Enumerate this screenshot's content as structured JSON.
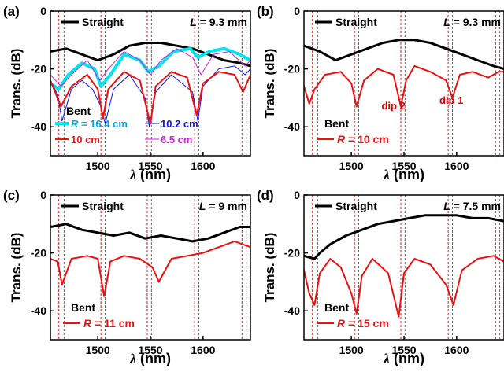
{
  "figure": {
    "description_panels": 4
  },
  "chart_data": [
    {
      "panel_label": "(a)",
      "type": "line",
      "xlabel_symbol": "λ",
      "xlabel_unit": "(nm)",
      "ylabel": "Trans. (dB)",
      "xlim": [
        1455,
        1645
      ],
      "ylim": [
        -50,
        0
      ],
      "xticks": [
        1500,
        1550,
        1600
      ],
      "yticks": [
        -40,
        -20,
        0
      ],
      "length_label": "L = 9.3 mm",
      "length_prefix": "L",
      "length_value": "= 9.3 mm",
      "bent_label": "Bent",
      "dashed_reference_lines": [
        1463,
        1468,
        1503,
        1507,
        1547,
        1551,
        1592,
        1596,
        1637,
        1641
      ],
      "series": [
        {
          "name": "Straight",
          "color": "#000000",
          "width": 3,
          "x": [
            1455,
            1470,
            1485,
            1500,
            1515,
            1530,
            1545,
            1560,
            1575,
            1590,
            1605,
            1620,
            1635,
            1645
          ],
          "y": [
            -14,
            -13,
            -15,
            -17,
            -15,
            -12,
            -11,
            -11,
            -12,
            -13,
            -15,
            -17,
            -18,
            -19
          ]
        },
        {
          "name": "R = 16.4 cm",
          "color": "#00e5ee",
          "width": 4,
          "x": [
            1455,
            1463,
            1472,
            1485,
            1497,
            1503,
            1512,
            1525,
            1540,
            1548,
            1558,
            1572,
            1588,
            1595,
            1606,
            1620,
            1635,
            1645
          ],
          "y": [
            -25,
            -27,
            -22,
            -18,
            -20,
            -26,
            -22,
            -15,
            -17,
            -21,
            -19,
            -14,
            -13,
            -16,
            -14,
            -13,
            -15,
            -17
          ]
        },
        {
          "name": "10.2 cm",
          "color": "#1010ee",
          "width": 1,
          "x": [
            1455,
            1462,
            1466,
            1475,
            1485,
            1495,
            1503,
            1507,
            1515,
            1530,
            1545,
            1549,
            1555,
            1570,
            1590,
            1595,
            1600,
            1615,
            1630,
            1640,
            1645
          ],
          "y": [
            -24,
            -29,
            -38,
            -27,
            -24,
            -27,
            -33,
            -39,
            -27,
            -22,
            -30,
            -40,
            -28,
            -22,
            -28,
            -38,
            -26,
            -20,
            -19,
            -22,
            -20
          ]
        },
        {
          "name": "10 cm",
          "color": "#ee1010",
          "width": 2,
          "x": [
            1455,
            1465,
            1475,
            1490,
            1500,
            1505,
            1510,
            1525,
            1540,
            1550,
            1555,
            1570,
            1585,
            1594,
            1600,
            1615,
            1630,
            1638,
            1645
          ],
          "y": [
            -24,
            -33,
            -26,
            -22,
            -27,
            -37,
            -27,
            -21,
            -24,
            -39,
            -26,
            -21,
            -23,
            -36,
            -25,
            -21,
            -22,
            -28,
            -22
          ]
        },
        {
          "name": "6.5 cm",
          "color": "#cc22dd",
          "width": 1,
          "x": [
            1455,
            1465,
            1475,
            1490,
            1502,
            1510,
            1525,
            1540,
            1550,
            1560,
            1575,
            1590,
            1598,
            1610,
            1625,
            1640,
            1645
          ],
          "y": [
            -22,
            -26,
            -22,
            -17,
            -24,
            -20,
            -14,
            -17,
            -22,
            -17,
            -13,
            -16,
            -22,
            -15,
            -14,
            -19,
            -17
          ]
        }
      ],
      "legend_rows": [
        {
          "label": "R = 16.4 cm",
          "prefix": "R",
          "value": " = 16.4 cm",
          "color": "#00e5ee",
          "width": 4,
          "label_color": "#00aadd"
        },
        {
          "label": "10.2 cm",
          "prefix": "",
          "value": "10.2 cm",
          "color": "#1010ee",
          "width": 1,
          "label_color": "#1010ee"
        },
        {
          "label": "10 cm",
          "prefix": "",
          "value": "10 cm",
          "color": "#ee1010",
          "width": 2,
          "label_color": "#ee1010"
        },
        {
          "label": "6.5 cm",
          "prefix": "",
          "value": "6.5 cm",
          "color": "#cc22dd",
          "width": 1,
          "label_color": "#cc22dd"
        }
      ],
      "annotations": []
    },
    {
      "panel_label": "(b)",
      "type": "line",
      "xlabel_symbol": "λ",
      "xlabel_unit": "(nm)",
      "ylabel": "Trans. (dB)",
      "xlim": [
        1455,
        1645
      ],
      "ylim": [
        -50,
        0
      ],
      "xticks": [
        1500,
        1550,
        1600
      ],
      "yticks": [
        -40,
        -20,
        0
      ],
      "length_label": "L = 9.3 mm",
      "length_prefix": "L",
      "length_value": "= 9.3 mm",
      "bent_label": "Bent",
      "dashed_reference_lines": [
        1463,
        1468,
        1503,
        1507,
        1547,
        1551,
        1592,
        1596,
        1637,
        1641
      ],
      "series": [
        {
          "name": "Straight",
          "color": "#000000",
          "width": 3,
          "x": [
            1455,
            1470,
            1485,
            1500,
            1515,
            1530,
            1545,
            1560,
            1575,
            1590,
            1605,
            1620,
            1635,
            1645
          ],
          "y": [
            -12,
            -14,
            -17,
            -15,
            -13,
            -11,
            -10,
            -10,
            -11,
            -13,
            -15,
            -17,
            -19,
            -20
          ]
        },
        {
          "name": "R = 10 cm",
          "color": "#ee1010",
          "width": 2,
          "x": [
            1455,
            1460,
            1465,
            1475,
            1490,
            1500,
            1505,
            1512,
            1525,
            1540,
            1547,
            1552,
            1560,
            1575,
            1590,
            1596,
            1603,
            1615,
            1630,
            1640,
            1645
          ],
          "y": [
            -26,
            -32,
            -27,
            -22,
            -21,
            -25,
            -33,
            -24,
            -20,
            -22,
            -33,
            -24,
            -19,
            -21,
            -24,
            -30,
            -22,
            -21,
            -23,
            -21,
            -21
          ]
        }
      ],
      "legend_rows": [
        {
          "label": "R = 10 cm",
          "prefix": "R",
          "value": " = 10 cm",
          "color": "#ee1010",
          "width": 2,
          "label_color": "#ee1010"
        }
      ],
      "annotations": [
        {
          "text": "dip 2",
          "x": 1540,
          "y": -34,
          "color": "#dd0000"
        },
        {
          "text": "dip 1",
          "x": 1595,
          "y": -32,
          "color": "#dd0000"
        }
      ]
    },
    {
      "panel_label": "(c)",
      "type": "line",
      "xlabel_symbol": "λ",
      "xlabel_unit": "(nm)",
      "ylabel": "Trans. (dB)",
      "xlim": [
        1455,
        1645
      ],
      "ylim": [
        -50,
        0
      ],
      "xticks": [
        1500,
        1550,
        1600
      ],
      "yticks": [
        -40,
        -20,
        0
      ],
      "length_label": "L = 9 mm",
      "length_prefix": "L",
      "length_value": "= 9 mm",
      "bent_label": "Bent",
      "dashed_reference_lines": [
        1463,
        1468,
        1503,
        1507,
        1547,
        1551,
        1592,
        1596,
        1637,
        1641
      ],
      "series": [
        {
          "name": "Straight",
          "color": "#000000",
          "width": 3,
          "x": [
            1455,
            1470,
            1485,
            1500,
            1515,
            1530,
            1545,
            1560,
            1575,
            1590,
            1605,
            1620,
            1635,
            1645
          ],
          "y": [
            -11,
            -10,
            -12,
            -13,
            -14,
            -13,
            -15,
            -14,
            -15,
            -16,
            -15,
            -13,
            -11,
            -11
          ]
        },
        {
          "name": "R = 11 cm",
          "color": "#ee1010",
          "width": 2,
          "x": [
            1455,
            1462,
            1466,
            1475,
            1490,
            1500,
            1506,
            1512,
            1525,
            1540,
            1552,
            1558,
            1570,
            1585,
            1600,
            1615,
            1630,
            1645
          ],
          "y": [
            -22,
            -23,
            -31,
            -22,
            -21,
            -22,
            -35,
            -23,
            -21,
            -22,
            -25,
            -30,
            -22,
            -21,
            -20,
            -18,
            -16,
            -18
          ]
        }
      ],
      "legend_rows": [
        {
          "label": "R = 11 cm",
          "prefix": "R",
          "value": " = 11 cm",
          "color": "#ee1010",
          "width": 2,
          "label_color": "#ee1010"
        }
      ],
      "annotations": []
    },
    {
      "panel_label": "(d)",
      "type": "line",
      "xlabel_symbol": "λ",
      "xlabel_unit": "(nm)",
      "ylabel": "Trans. (dB)",
      "xlim": [
        1455,
        1645
      ],
      "ylim": [
        -50,
        0
      ],
      "xticks": [
        1500,
        1550,
        1600
      ],
      "yticks": [
        -40,
        -20,
        0
      ],
      "length_label": "L = 7.5 mm",
      "length_prefix": "L",
      "length_value": "= 7.5 mm",
      "bent_label": "Bent",
      "dashed_reference_lines": [
        1463,
        1468,
        1503,
        1507,
        1547,
        1551,
        1592,
        1596,
        1637,
        1641
      ],
      "series": [
        {
          "name": "Straight",
          "color": "#000000",
          "width": 3,
          "x": [
            1455,
            1465,
            1470,
            1480,
            1495,
            1510,
            1525,
            1540,
            1555,
            1570,
            1585,
            1600,
            1615,
            1630,
            1645
          ],
          "y": [
            -21,
            -22,
            -20,
            -17,
            -14,
            -12,
            -10,
            -9,
            -8,
            -7,
            -7,
            -7,
            -8,
            -8,
            -9
          ]
        },
        {
          "name": "R = 15 cm",
          "color": "#ee1010",
          "width": 2,
          "x": [
            1455,
            1460,
            1465,
            1470,
            1480,
            1490,
            1500,
            1505,
            1510,
            1520,
            1535,
            1545,
            1550,
            1560,
            1575,
            1590,
            1597,
            1605,
            1620,
            1635,
            1645
          ],
          "y": [
            -26,
            -34,
            -38,
            -27,
            -22,
            -25,
            -34,
            -41,
            -28,
            -22,
            -27,
            -42,
            -27,
            -22,
            -24,
            -31,
            -38,
            -26,
            -22,
            -21,
            -23
          ]
        }
      ],
      "legend_rows": [
        {
          "label": "R = 15 cm",
          "prefix": "R",
          "value": " = 15 cm",
          "color": "#ee1010",
          "width": 2,
          "label_color": "#ee1010"
        }
      ],
      "annotations": []
    }
  ]
}
